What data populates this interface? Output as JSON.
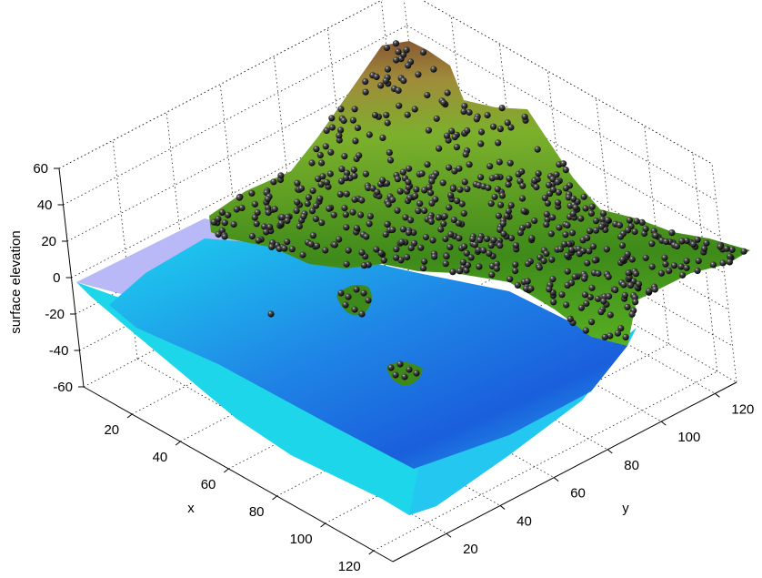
{
  "chart_data": {
    "type": "surface",
    "title": "",
    "zlabel": "surface elevation",
    "xlabel": "x",
    "ylabel": "y",
    "xlim": [
      0,
      128
    ],
    "ylim": [
      0,
      128
    ],
    "zlim": [
      -60,
      60
    ],
    "x_ticks": [
      20,
      40,
      60,
      80,
      100,
      120
    ],
    "y_ticks": [
      20,
      40,
      60,
      80,
      100,
      120
    ],
    "z_ticks": [
      60,
      40,
      20,
      0,
      -20,
      -40,
      -60
    ],
    "x_tick_labels": [
      "20",
      "40",
      "60",
      "80",
      "100",
      "120"
    ],
    "y_tick_labels": [
      "20",
      "40",
      "60",
      "80",
      "100",
      "120"
    ],
    "z_tick_labels": [
      "60",
      "40",
      "20",
      "0",
      "-20",
      "-40",
      "-60"
    ],
    "grid": true,
    "sea_level": 0,
    "surface_colors": {
      "deep_water": "#1a4fd6",
      "shallow_water": "#19d6ee",
      "sea_plane": "#b8b8f8",
      "lowland": "#56b81e",
      "highland": "#9a8a2a",
      "peak": "#8a5a2e"
    },
    "marker_style": "black spheres on land above sea level",
    "marker_color": "#111111"
  }
}
